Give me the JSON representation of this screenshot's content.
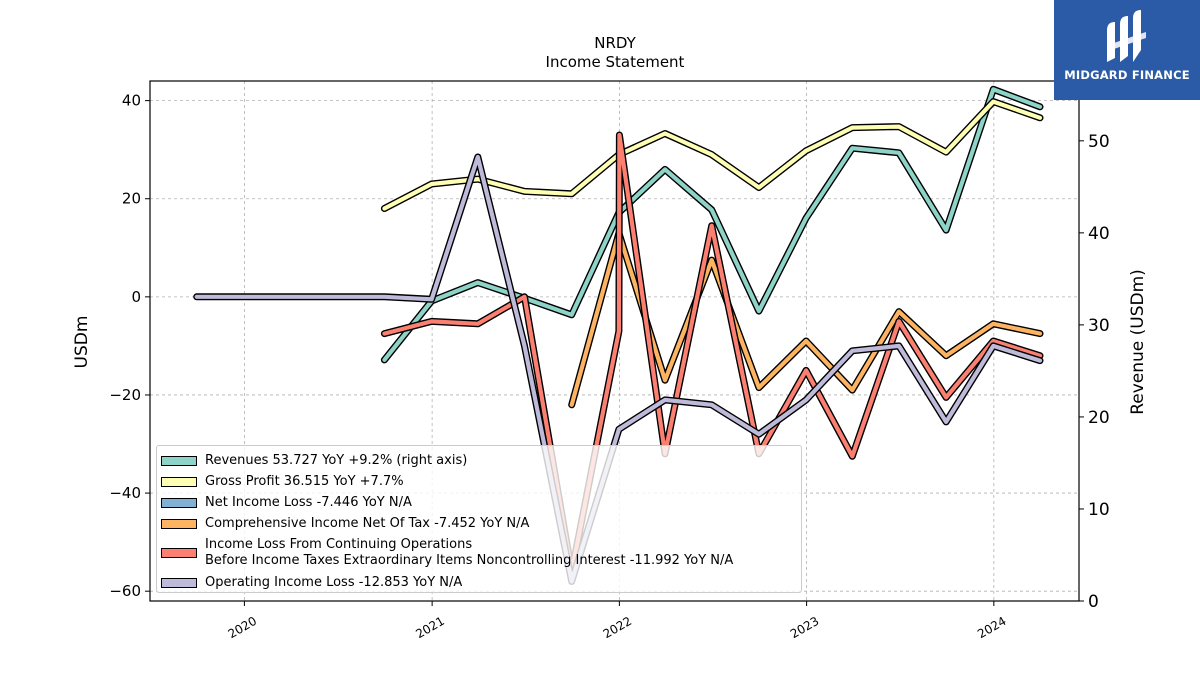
{
  "chart_data": {
    "type": "line",
    "title": "NRDY",
    "subtitle": "Income Statement",
    "ylabel": "USDm",
    "ylabel_right": "Revenue (USDm)",
    "ylim": [
      -62,
      44
    ],
    "ylim_right": [
      0,
      56.5
    ],
    "yticks": [
      40,
      20,
      0,
      -20,
      -40,
      -60
    ],
    "yticks_labels": [
      "40",
      "20",
      "0",
      "−20",
      "−40",
      "−60"
    ],
    "yticks_right": [
      50,
      40,
      30,
      20,
      10,
      0
    ],
    "xlim": [
      "2019-07-01",
      "2024-06-15"
    ],
    "xticks": [
      "2020-01-01",
      "2021-01-01",
      "2022-01-01",
      "2023-01-01",
      "2024-01-01"
    ],
    "xtick_labels": [
      "2020",
      "2021",
      "2022",
      "2023",
      "2024"
    ],
    "grid": true,
    "legend_position": "lower-left",
    "series": [
      {
        "name": "Revenues  53.727 YoY +9.2% (right axis)",
        "axis": "right",
        "color": "#8dd3c7",
        "x": [
          "2020-09-30",
          "2020-12-31",
          "2021-03-31",
          "2021-06-30",
          "2021-09-30",
          "2021-12-31",
          "2022-03-31",
          "2022-06-30",
          "2022-09-30",
          "2022-12-31",
          "2023-03-31",
          "2023-06-30",
          "2023-09-30",
          "2023-12-31",
          "2024-03-31"
        ],
        "values": [
          26.2,
          32.6,
          34.6,
          32.9,
          31.1,
          42.2,
          46.9,
          42.5,
          31.5,
          41.6,
          49.2,
          48.7,
          40.3,
          55.6,
          53.7
        ]
      },
      {
        "name": "Gross Profit  36.515 YoY +7.7%",
        "axis": "left",
        "color": "#ffffb3",
        "x": [
          "2020-09-30",
          "2020-12-31",
          "2021-03-31",
          "2021-06-30",
          "2021-09-30",
          "2021-12-31",
          "2022-03-31",
          "2022-06-30",
          "2022-09-30",
          "2022-12-31",
          "2023-03-31",
          "2023-06-30",
          "2023-09-30",
          "2023-12-31",
          "2024-03-31"
        ],
        "values": [
          18,
          23,
          24,
          21.5,
          21,
          29,
          33.3,
          29,
          22.3,
          29.8,
          34.5,
          34.7,
          29.5,
          39.8,
          36.5
        ]
      },
      {
        "name": "Net Income Loss  -7.446 YoY N/A",
        "axis": "left",
        "color": "#80b1d3",
        "x": [],
        "values": []
      },
      {
        "name": "Comprehensive Income Net Of Tax  -7.452 YoY N/A",
        "axis": "left",
        "color": "#fdb462",
        "x": [
          "2021-09-30",
          "2021-12-31",
          "2022-03-31",
          "2022-06-30",
          "2022-09-30",
          "2022-12-31",
          "2023-03-31",
          "2023-06-30",
          "2023-09-30",
          "2023-12-31",
          "2024-03-31"
        ],
        "values": [
          -22,
          13,
          -17,
          7.5,
          -18.5,
          -9,
          -19,
          -3,
          -12,
          -5.5,
          -7.5
        ]
      },
      {
        "name": "Income Loss From Continuing Operations\nBefore Income Taxes Extraordinary Items Noncontrolling Interest  -11.992 YoY N/A",
        "axis": "left",
        "color": "#fb8072",
        "x": [
          "2020-09-30",
          "2020-12-31",
          "2021-03-31",
          "2021-06-30",
          "2021-09-30",
          "2021-12-31",
          "2022-01-01",
          "2022-03-31",
          "2022-06-30",
          "2022-09-30",
          "2022-12-31",
          "2023-03-31",
          "2023-06-30",
          "2023-09-30",
          "2023-12-31",
          "2024-03-31"
        ],
        "values": [
          -7.5,
          -5,
          -5.5,
          0,
          -56,
          -7,
          33,
          -32,
          14.5,
          -32,
          -15,
          -32.5,
          -5,
          -20.5,
          -9,
          -12
        ]
      },
      {
        "name": "Operating Income Loss  -12.853 YoY N/A",
        "axis": "left",
        "color": "#bebada",
        "x": [
          "2019-09-30",
          "2020-09-30",
          "2020-12-31",
          "2021-03-31",
          "2021-06-30",
          "2021-09-30",
          "2021-12-31",
          "2022-03-31",
          "2022-06-30",
          "2022-09-30",
          "2022-12-31",
          "2023-03-31",
          "2023-06-30",
          "2023-09-30",
          "2023-12-31",
          "2024-03-31"
        ],
        "values": [
          0,
          0,
          -0.5,
          28.5,
          -10,
          -58,
          -27,
          -21,
          -22,
          -28,
          -21,
          -11,
          -10,
          -25.5,
          -10,
          -13
        ]
      }
    ]
  },
  "legend": {
    "items": [
      {
        "label": "Revenues  53.727 YoY +9.2% (right axis)",
        "color": "#8dd3c7"
      },
      {
        "label": "Gross Profit  36.515 YoY +7.7%",
        "color": "#ffffb3"
      },
      {
        "label": "Net Income Loss  -7.446 YoY N/A",
        "color": "#80b1d3"
      },
      {
        "label": "Comprehensive Income Net Of Tax  -7.452 YoY N/A",
        "color": "#fdb462"
      },
      {
        "label": "Income Loss From Continuing Operations\nBefore Income Taxes Extraordinary Items Noncontrolling Interest  -11.992 YoY N/A",
        "color": "#fb8072"
      },
      {
        "label": "Operating Income Loss  -12.853 YoY N/A",
        "color": "#bebada"
      }
    ]
  },
  "logo": {
    "text": "MIDGARD FINANCE",
    "color": "#2b5aa6"
  }
}
